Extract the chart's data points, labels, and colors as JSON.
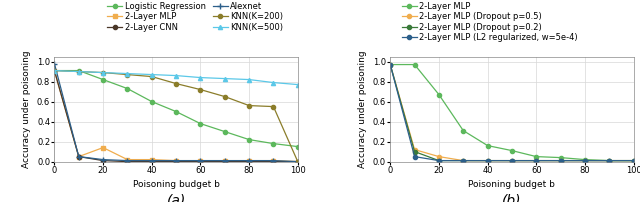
{
  "a_x": [
    0,
    10,
    20,
    30,
    40,
    50,
    60,
    70,
    80,
    90,
    100
  ],
  "logistic_regression": [
    0.91,
    0.91,
    0.82,
    0.73,
    0.6,
    0.5,
    0.38,
    0.3,
    0.22,
    0.18,
    0.15
  ],
  "mlp_2layer": [
    0.91,
    0.05,
    0.14,
    0.02,
    0.02,
    0.01,
    0.01,
    0.01,
    0.01,
    0.01,
    0.0
  ],
  "cnn_2layer": [
    0.91,
    0.05,
    0.01,
    0.0,
    0.0,
    0.0,
    0.0,
    0.0,
    0.0,
    0.0,
    0.0
  ],
  "alexnet": [
    0.98,
    0.05,
    0.02,
    0.01,
    0.01,
    0.01,
    0.01,
    0.01,
    0.01,
    0.01,
    0.0
  ],
  "knn200": [
    0.91,
    0.9,
    0.89,
    0.87,
    0.85,
    0.78,
    0.72,
    0.65,
    0.56,
    0.55,
    0.0
  ],
  "knn500": [
    0.91,
    0.9,
    0.89,
    0.88,
    0.87,
    0.86,
    0.84,
    0.83,
    0.82,
    0.79,
    0.77
  ],
  "b_x": [
    0,
    10,
    20,
    30,
    40,
    50,
    60,
    70,
    80,
    90,
    100
  ],
  "b_mlp": [
    0.97,
    0.97,
    0.67,
    0.31,
    0.16,
    0.11,
    0.05,
    0.04,
    0.02,
    0.01,
    0.01
  ],
  "b_mlp_drop05": [
    0.97,
    0.12,
    0.05,
    0.01,
    0.01,
    0.01,
    0.01,
    0.01,
    0.01,
    0.01,
    0.01
  ],
  "b_mlp_drop02": [
    0.97,
    0.1,
    0.01,
    0.01,
    0.01,
    0.01,
    0.01,
    0.01,
    0.01,
    0.01,
    0.01
  ],
  "b_mlp_l2": [
    0.97,
    0.05,
    0.01,
    0.01,
    0.01,
    0.01,
    0.01,
    0.01,
    0.01,
    0.01,
    0.01
  ],
  "color_logistic": "#5cb85c",
  "color_mlp": "#f0ad4e",
  "color_cnn": "#4a3728",
  "color_alexnet": "#2c5f8a",
  "color_knn200": "#8b7d2a",
  "color_knn500": "#5bc8e8",
  "color_b_mlp": "#5cb85c",
  "color_b_drop05": "#f0ad4e",
  "color_b_drop02": "#3a7a3a",
  "color_b_l2": "#2c5f8a",
  "xlabel": "Poisoning budget b",
  "ylabel": "Accuracy under poisoning",
  "label_a": "(a)",
  "label_b": "(b)",
  "legend_a": [
    "Logistic Regression",
    "2-Layer MLP",
    "2-Layer CNN",
    "Alexnet",
    "KNN(K=200)",
    "KNN(K=500)"
  ],
  "legend_b": [
    "2-Layer MLP",
    "2-Layer MLP (Dropout p=0.5)",
    "2-Layer MLP (Dropout p=0.2)",
    "2-Layer MLP (L2 regularized, w=5e-4)"
  ],
  "ylim": [
    0.0,
    1.05
  ],
  "xlim": [
    0,
    100
  ],
  "xticks": [
    0,
    20,
    40,
    60,
    80,
    100
  ],
  "yticks": [
    0.0,
    0.2,
    0.4,
    0.6,
    0.8,
    1.0
  ]
}
